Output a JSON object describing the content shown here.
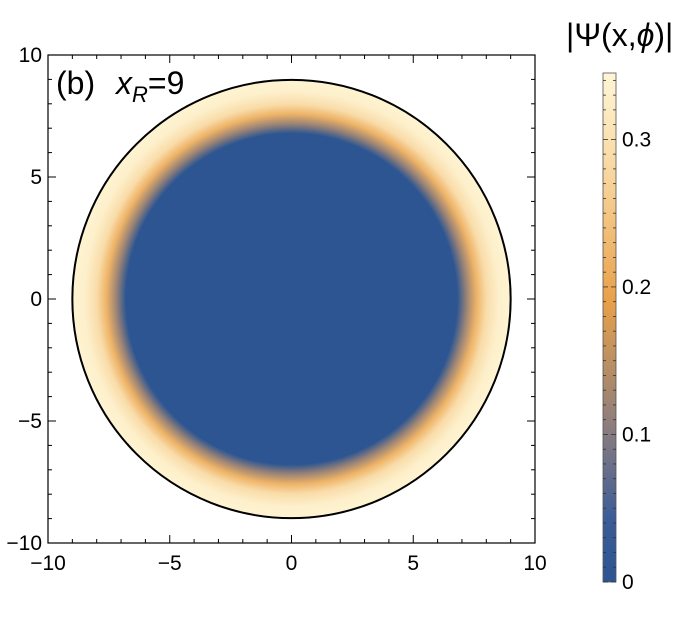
{
  "chart_data": {
    "type": "heatmap",
    "panel_label": "(b)",
    "annotation": {
      "var": "x",
      "sub": "R",
      "rest": "=9"
    },
    "xlim": [
      -10,
      10
    ],
    "ylim": [
      -10,
      10
    ],
    "x_ticks": [
      -10,
      -5,
      0,
      5,
      10
    ],
    "y_ticks": [
      -10,
      -5,
      0,
      5,
      10
    ],
    "x_tick_labels": [
      "−10",
      "−5",
      "0",
      "5",
      "10"
    ],
    "y_tick_labels": [
      "−10",
      "−5",
      "0",
      "5",
      "10"
    ],
    "disk": {
      "center": [
        0,
        0
      ],
      "radius": 9
    },
    "radial_profile": {
      "r": [
        0,
        6.8,
        7.2,
        7.6,
        8.0,
        8.5,
        9.0
      ],
      "value": [
        0.0,
        0.0,
        0.12,
        0.22,
        0.29,
        0.33,
        0.34
      ]
    },
    "colorbar": {
      "title_parts": [
        "|Ψ(x,",
        "ϕ",
        ")|"
      ],
      "range": [
        0,
        0.345
      ],
      "ticks": [
        0,
        0.1,
        0.2,
        0.3
      ],
      "tick_labels": [
        "0",
        "0.1",
        "0.2",
        "0.3"
      ],
      "colors": [
        "#2c5592",
        "#3a5c98",
        "#8a7d7f",
        "#e8a049",
        "#f8d69e",
        "#fff6d6"
      ],
      "color_stops": [
        0,
        0.12,
        0.3,
        0.55,
        0.8,
        1.0
      ]
    },
    "grid": false
  }
}
